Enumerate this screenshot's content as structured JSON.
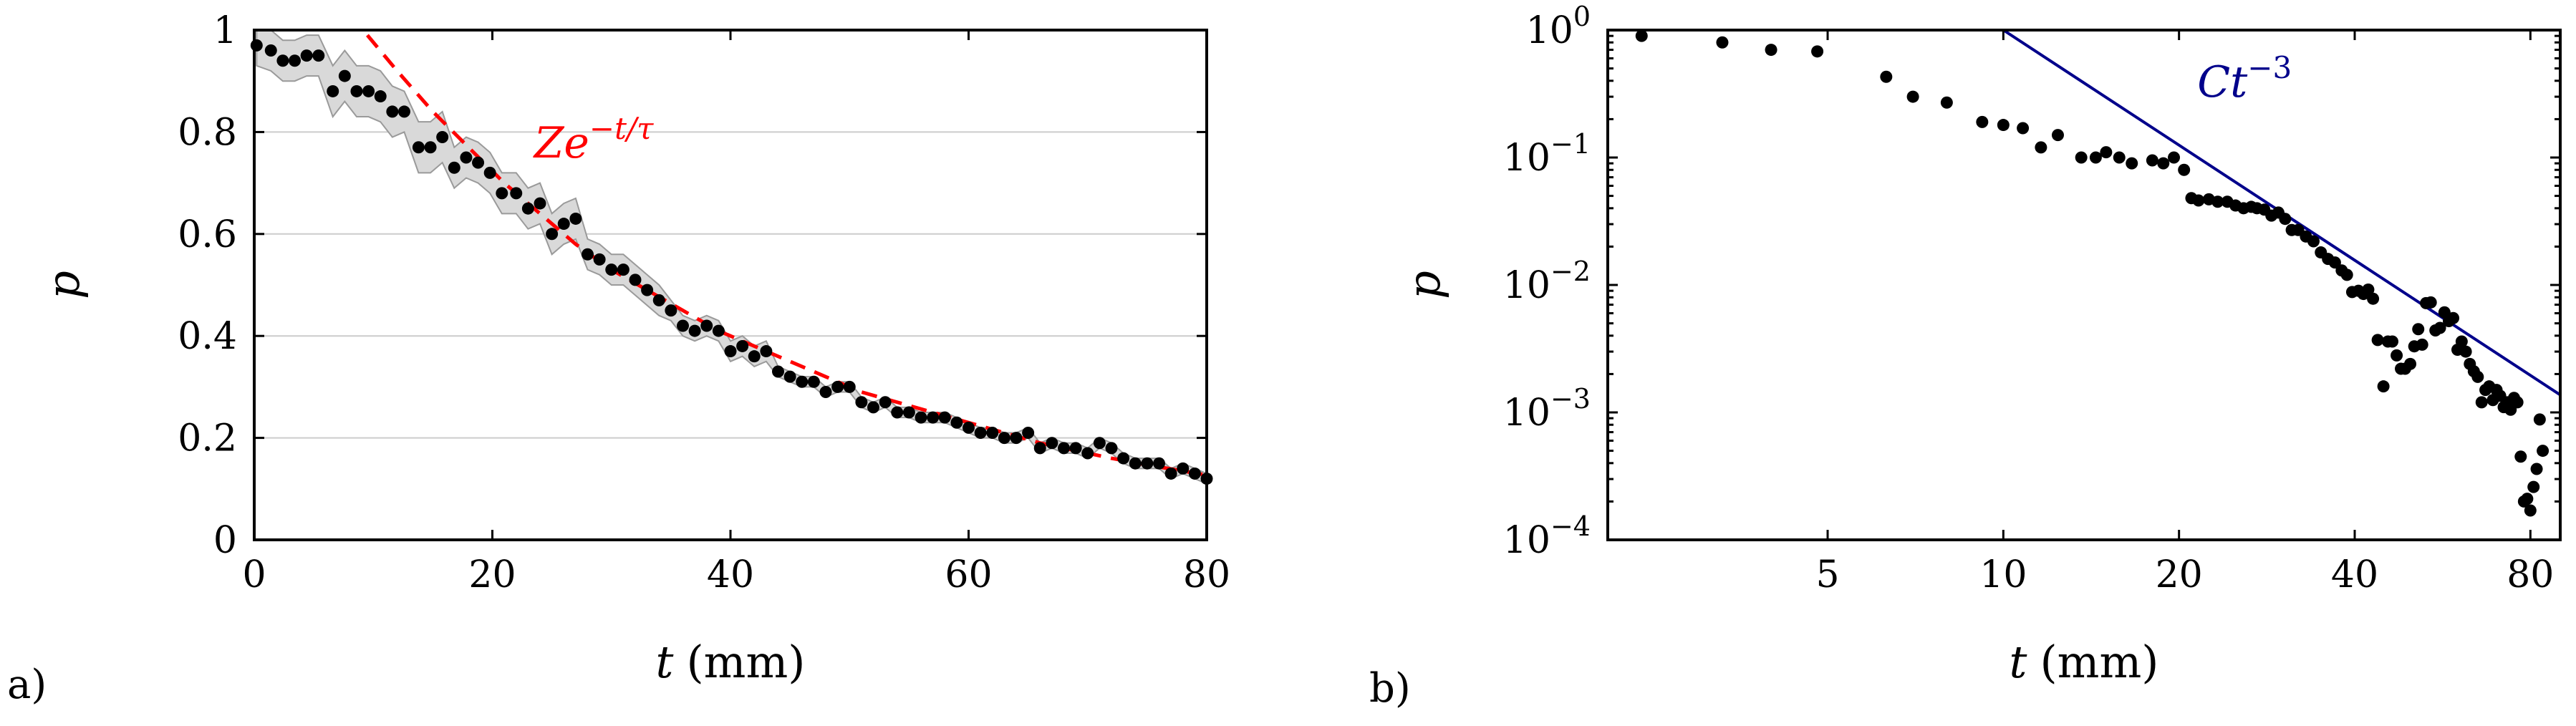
{
  "panels": [
    {
      "label": "a)",
      "chart_data": {
        "type": "scatter",
        "xlabel_var": "t",
        "xlabel_unit": "(mm)",
        "ylabel": "p",
        "xlim": [
          0,
          80
        ],
        "ylim": [
          0,
          1
        ],
        "xticks": [
          0,
          20,
          40,
          60,
          80
        ],
        "xtick_labels": [
          "0",
          "20",
          "40",
          "60",
          "80"
        ],
        "yticks": [
          0,
          0.2,
          0.4,
          0.6,
          0.8,
          1
        ],
        "ytick_labels": [
          "0",
          "0.2",
          "0.4",
          "0.6",
          "0.8",
          "1"
        ],
        "grid": "horizontal",
        "x": [
          0.2,
          1.4,
          2.4,
          3.4,
          4.4,
          5.4,
          6.6,
          7.6,
          8.6,
          9.6,
          10.6,
          11.6,
          12.6,
          13.8,
          14.8,
          15.8,
          16.8,
          17.8,
          18.8,
          19.8,
          20.8,
          22.0,
          23.0,
          24.0,
          25.0,
          26.0,
          27.0,
          28.0,
          29.0,
          30.0,
          31.0,
          32.0,
          33.0,
          34.0,
          35.0,
          36.0,
          37.0,
          38.0,
          39.0,
          40.0,
          41.0,
          42.0,
          43.0,
          44.0,
          45.0,
          46.0,
          47.0,
          48.0,
          49.0,
          50.0,
          51.0,
          52.0,
          53.0,
          54.0,
          55.0,
          56.0,
          57.0,
          58.0,
          59.0,
          60.0,
          61.0,
          62.0,
          63.0,
          64.0,
          65.0,
          66.0,
          67.0,
          68.0,
          69.0,
          70.0,
          71.0,
          72.0,
          73.0,
          74.0,
          75.0,
          76.0,
          77.0,
          78.0,
          79.0,
          80.0
        ],
        "y": [
          0.97,
          0.96,
          0.94,
          0.94,
          0.95,
          0.95,
          0.88,
          0.91,
          0.88,
          0.88,
          0.87,
          0.84,
          0.84,
          0.77,
          0.77,
          0.79,
          0.73,
          0.75,
          0.74,
          0.72,
          0.68,
          0.68,
          0.65,
          0.66,
          0.6,
          0.62,
          0.63,
          0.56,
          0.55,
          0.53,
          0.53,
          0.51,
          0.49,
          0.47,
          0.45,
          0.42,
          0.41,
          0.42,
          0.41,
          0.37,
          0.38,
          0.36,
          0.37,
          0.33,
          0.32,
          0.31,
          0.31,
          0.29,
          0.3,
          0.3,
          0.27,
          0.26,
          0.27,
          0.25,
          0.25,
          0.24,
          0.24,
          0.24,
          0.23,
          0.22,
          0.21,
          0.21,
          0.2,
          0.2,
          0.21,
          0.18,
          0.19,
          0.18,
          0.18,
          0.17,
          0.19,
          0.18,
          0.16,
          0.15,
          0.15,
          0.15,
          0.13,
          0.14,
          0.13,
          0.12
        ],
        "band_halfwidth": [
          0.04,
          0.04,
          0.04,
          0.04,
          0.04,
          0.04,
          0.05,
          0.05,
          0.05,
          0.05,
          0.05,
          0.05,
          0.04,
          0.05,
          0.05,
          0.05,
          0.04,
          0.04,
          0.04,
          0.04,
          0.04,
          0.04,
          0.04,
          0.04,
          0.04,
          0.04,
          0.04,
          0.03,
          0.03,
          0.03,
          0.03,
          0.03,
          0.03,
          0.03,
          0.02,
          0.02,
          0.02,
          0.02,
          0.02,
          0.02,
          0.02,
          0.02,
          0.02,
          0.01,
          0.01,
          0.01,
          0.01,
          0.01,
          0.01,
          0.01,
          0.01,
          0.01,
          0.01,
          0.01,
          0.01,
          0.01,
          0.01,
          0.01,
          0.01,
          0.01,
          0.01,
          0.01,
          0.01,
          0.01,
          0.01,
          0.01,
          0.01,
          0.01,
          0.01,
          0.01,
          0.01,
          0.01,
          0.01,
          0.01,
          0.01,
          0.01,
          0.01,
          0.01,
          0.01,
          0.01
        ],
        "fit": {
          "x": [
            9.5,
            12,
            15,
            18,
            21,
            24,
            27,
            30,
            33,
            36,
            39,
            42,
            45,
            48,
            51,
            54,
            57,
            60,
            63,
            66,
            69,
            72,
            75,
            78,
            80
          ],
          "y": [
            0.99,
            0.92,
            0.84,
            0.77,
            0.7,
            0.64,
            0.58,
            0.53,
            0.49,
            0.45,
            0.41,
            0.38,
            0.35,
            0.32,
            0.29,
            0.27,
            0.25,
            0.23,
            0.21,
            0.19,
            0.175,
            0.16,
            0.147,
            0.135,
            0.127
          ],
          "color": "#ff0000",
          "label_base": "Ze",
          "label_exp": "−t/τ",
          "label_at": [
            23.5,
            0.75
          ]
        },
        "point_color": "#000000",
        "band_color": "#d9d9d9"
      }
    },
    {
      "label": "b)",
      "chart_data": {
        "type": "scatter",
        "scale": "log-log",
        "xlabel_var": "t",
        "xlabel_unit": "(mm)",
        "ylabel": "p",
        "xlim": [
          2.1,
          90
        ],
        "ylim": [
          0.0001,
          1
        ],
        "xticks": [
          5,
          10,
          20,
          40,
          80
        ],
        "xtick_labels": [
          "5",
          "10",
          "20",
          "40",
          "80"
        ],
        "yticks": [
          0.0001,
          0.001,
          0.01,
          0.1,
          1
        ],
        "ytick_labels": [
          [
            "10",
            "−4"
          ],
          [
            "10",
            "−3"
          ],
          [
            "10",
            "−2"
          ],
          [
            "10",
            "−1"
          ],
          [
            "10",
            "0"
          ]
        ],
        "grid": "none",
        "x": [
          2.4,
          3.3,
          4.0,
          4.8,
          6.3,
          7.0,
          8.0,
          9.2,
          10.0,
          10.8,
          11.6,
          12.4,
          13.6,
          14.4,
          15.0,
          15.8,
          16.6,
          18.0,
          18.8,
          19.6,
          20.4,
          21.0,
          21.6,
          22.5,
          23.3,
          24.2,
          25.0,
          25.8,
          26.6,
          27.2,
          28.0,
          28.8,
          29.6,
          30.4,
          31.2,
          32.0,
          33.0,
          34.0,
          35.0,
          36.0,
          37.0,
          38.0,
          38.8,
          39.6,
          40.6,
          41.4,
          42.2,
          43.0,
          43.8,
          44.8,
          45.6,
          46.4,
          47.2,
          48.0,
          48.8,
          49.8,
          50.6,
          51.4,
          52.2,
          53.0,
          54.0,
          55.0,
          56.0,
          57.0,
          58.0,
          59.0,
          60.0,
          61.0,
          62.0,
          63.0,
          64.0,
          65.0,
          66.0,
          67.0,
          68.0,
          69.0,
          70.0,
          71.0,
          72.0,
          73.0,
          74.0,
          75.0,
          76.0,
          77.0,
          78.0,
          79.0,
          80.0,
          81.0,
          82.0,
          83.0,
          84.0
        ],
        "y": [
          0.9,
          0.8,
          0.7,
          0.68,
          0.43,
          0.3,
          0.27,
          0.19,
          0.18,
          0.17,
          0.12,
          0.15,
          0.1,
          0.1,
          0.11,
          0.1,
          0.09,
          0.095,
          0.09,
          0.1,
          0.08,
          0.048,
          0.046,
          0.047,
          0.045,
          0.045,
          0.042,
          0.04,
          0.041,
          0.04,
          0.039,
          0.035,
          0.037,
          0.033,
          0.027,
          0.027,
          0.024,
          0.022,
          0.018,
          0.016,
          0.015,
          0.013,
          0.012,
          0.0088,
          0.009,
          0.0085,
          0.0092,
          0.0078,
          0.0037,
          0.0016,
          0.0036,
          0.0036,
          0.0028,
          0.0022,
          0.0022,
          0.0024,
          0.0033,
          0.0045,
          0.0034,
          0.0072,
          0.0073,
          0.0044,
          0.0046,
          0.0061,
          0.0052,
          0.0055,
          0.0031,
          0.0036,
          0.003,
          0.0024,
          0.0021,
          0.0019,
          0.0012,
          0.0015,
          0.0016,
          0.00125,
          0.0015,
          0.00135,
          0.0011,
          0.0012,
          0.00105,
          0.0013,
          0.0012,
          0.00045,
          0.0002,
          0.00021,
          0.00017,
          0.00026,
          0.00036,
          0.00088,
          0.0005
        ],
        "fit": {
          "x": [
            10,
            90
          ],
          "y": [
            1,
            0.001372
          ],
          "color": "#00008b",
          "label_base": "Ct",
          "label_exp": "−3",
          "label_at": [
            21.5,
            0.3
          ]
        },
        "point_color": "#000000"
      }
    }
  ]
}
